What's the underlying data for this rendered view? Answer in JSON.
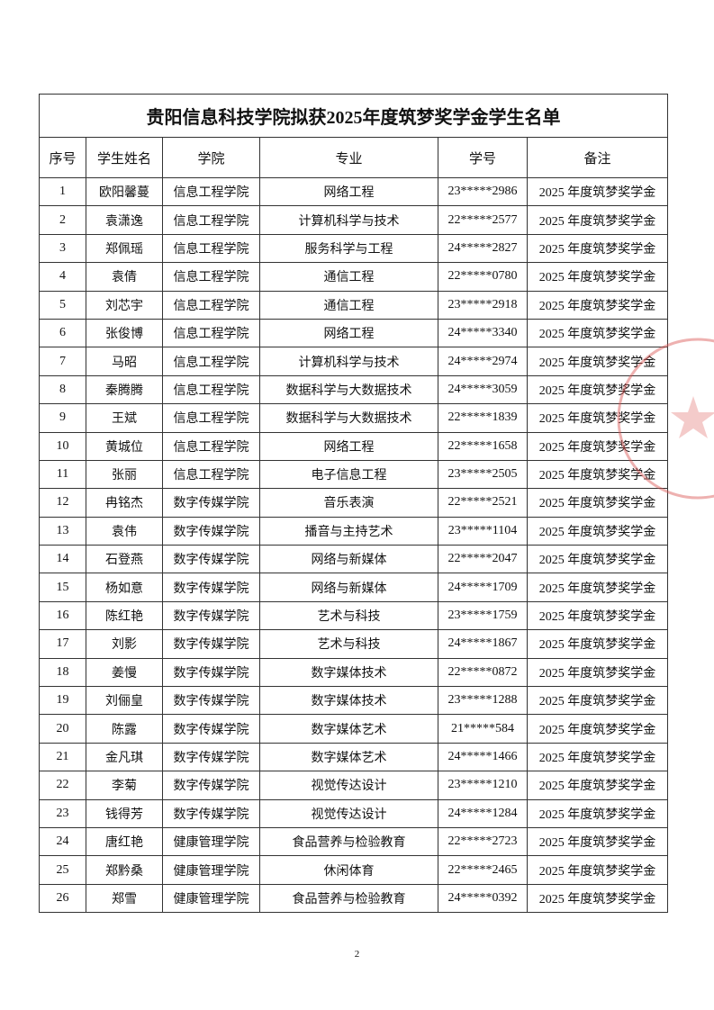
{
  "title": "贵阳信息科技学院拟获2025年度筑梦奖学金学生名单",
  "headers": [
    "序号",
    "学生姓名",
    "学院",
    "专业",
    "学号",
    "备注"
  ],
  "rows": [
    [
      "1",
      "欧阳馨蔓",
      "信息工程学院",
      "网络工程",
      "23*****2986",
      "2025 年度筑梦奖学金"
    ],
    [
      "2",
      "袁潇逸",
      "信息工程学院",
      "计算机科学与技术",
      "22*****2577",
      "2025 年度筑梦奖学金"
    ],
    [
      "3",
      "郑佩瑶",
      "信息工程学院",
      "服务科学与工程",
      "24*****2827",
      "2025 年度筑梦奖学金"
    ],
    [
      "4",
      "袁倩",
      "信息工程学院",
      "通信工程",
      "22*****0780",
      "2025 年度筑梦奖学金"
    ],
    [
      "5",
      "刘芯宇",
      "信息工程学院",
      "通信工程",
      "23*****2918",
      "2025 年度筑梦奖学金"
    ],
    [
      "6",
      "张俊博",
      "信息工程学院",
      "网络工程",
      "24*****3340",
      "2025 年度筑梦奖学金"
    ],
    [
      "7",
      "马昭",
      "信息工程学院",
      "计算机科学与技术",
      "24*****2974",
      "2025 年度筑梦奖学金"
    ],
    [
      "8",
      "秦腾腾",
      "信息工程学院",
      "数据科学与大数据技术",
      "24*****3059",
      "2025 年度筑梦奖学金"
    ],
    [
      "9",
      "王斌",
      "信息工程学院",
      "数据科学与大数据技术",
      "22*****1839",
      "2025 年度筑梦奖学金"
    ],
    [
      "10",
      "黄城位",
      "信息工程学院",
      "网络工程",
      "22*****1658",
      "2025 年度筑梦奖学金"
    ],
    [
      "11",
      "张丽",
      "信息工程学院",
      "电子信息工程",
      "23*****2505",
      "2025 年度筑梦奖学金"
    ],
    [
      "12",
      "冉铭杰",
      "数字传媒学院",
      "音乐表演",
      "22*****2521",
      "2025 年度筑梦奖学金"
    ],
    [
      "13",
      "袁伟",
      "数字传媒学院",
      "播音与主持艺术",
      "23*****1104",
      "2025 年度筑梦奖学金"
    ],
    [
      "14",
      "石登燕",
      "数字传媒学院",
      "网络与新媒体",
      "22*****2047",
      "2025 年度筑梦奖学金"
    ],
    [
      "15",
      "杨如意",
      "数字传媒学院",
      "网络与新媒体",
      "24*****1709",
      "2025 年度筑梦奖学金"
    ],
    [
      "16",
      "陈红艳",
      "数字传媒学院",
      "艺术与科技",
      "23*****1759",
      "2025 年度筑梦奖学金"
    ],
    [
      "17",
      "刘影",
      "数字传媒学院",
      "艺术与科技",
      "24*****1867",
      "2025 年度筑梦奖学金"
    ],
    [
      "18",
      "姜慢",
      "数字传媒学院",
      "数字媒体技术",
      "22*****0872",
      "2025 年度筑梦奖学金"
    ],
    [
      "19",
      "刘俪皇",
      "数字传媒学院",
      "数字媒体技术",
      "23*****1288",
      "2025 年度筑梦奖学金"
    ],
    [
      "20",
      "陈露",
      "数字传媒学院",
      "数字媒体艺术",
      "21*****584",
      "2025 年度筑梦奖学金"
    ],
    [
      "21",
      "金凡琪",
      "数字传媒学院",
      "数字媒体艺术",
      "24*****1466",
      "2025 年度筑梦奖学金"
    ],
    [
      "22",
      "李菊",
      "数字传媒学院",
      "视觉传达设计",
      "23*****1210",
      "2025 年度筑梦奖学金"
    ],
    [
      "23",
      "钱得芳",
      "数字传媒学院",
      "视觉传达设计",
      "24*****1284",
      "2025 年度筑梦奖学金"
    ],
    [
      "24",
      "唐红艳",
      "健康管理学院",
      "食品营养与检验教育",
      "22*****2723",
      "2025 年度筑梦奖学金"
    ],
    [
      "25",
      "郑黔桑",
      "健康管理学院",
      "休闲体育",
      "22*****2465",
      "2025 年度筑梦奖学金"
    ],
    [
      "26",
      "郑雪",
      "健康管理学院",
      "食品营养与检验教育",
      "24*****0392",
      "2025 年度筑梦奖学金"
    ]
  ],
  "page_number": "2"
}
